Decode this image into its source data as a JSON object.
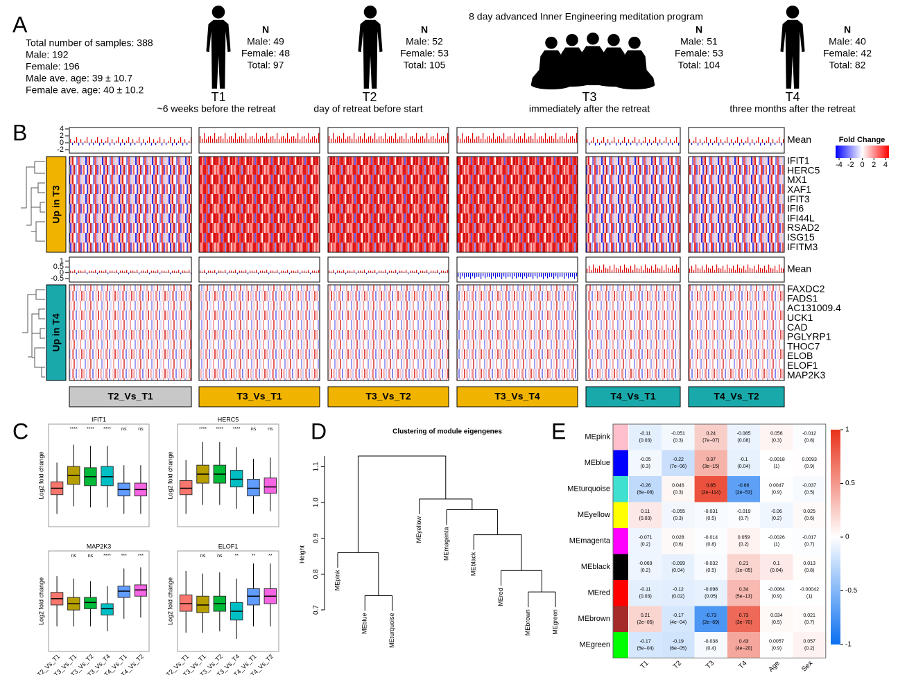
{
  "panel_a": {
    "label": "A",
    "summary": [
      "Total number of samples: 388",
      "Male: 192",
      "Female: 196",
      "Male ave. age: 39 ± 10.7",
      "Female ave. age: 40 ± 10.2"
    ],
    "program_title": "8 day advanced Inner Engineering meditation program",
    "timepoints": [
      {
        "name": "T1",
        "caption": "~6 weeks before the retreat",
        "n": "N",
        "male": "Male: 49",
        "female": "Female: 48",
        "total": "Total: 97"
      },
      {
        "name": "T2",
        "caption": "day of retreat before start",
        "n": "N",
        "male": "Male: 52",
        "female": "Female: 53",
        "total": "Total: 105"
      },
      {
        "name": "T3",
        "caption": "immediately after the retreat",
        "n": "N",
        "male": "Male: 51",
        "female": "Female: 53",
        "total": "Total: 104"
      },
      {
        "name": "T4",
        "caption": "three months after the retreat",
        "n": "N",
        "male": "Male: 40",
        "female": "Female: 42",
        "total": "Total: 82"
      }
    ]
  },
  "panel_b": {
    "label": "B",
    "mean_label": "Mean",
    "groups": [
      {
        "label": "Up in T3",
        "color": "#f0b400",
        "mean_ylim": [
          -3,
          4.4
        ],
        "mean_ticks": [
          4,
          2,
          0,
          -2
        ],
        "genes": [
          "IFIT1",
          "HERC5",
          "MX1",
          "XAF1",
          "IFIT3",
          "IFI6",
          "IFI44L",
          "RSAD2",
          "ISG15",
          "IFITM3"
        ]
      },
      {
        "label": "Up in T4",
        "color": "#1aa9aa",
        "mean_ylim": [
          -0.8,
          1.35
        ],
        "mean_ticks": [
          1,
          0.5,
          0,
          -0.5
        ],
        "genes": [
          "FAXDC2",
          "FADS1",
          "AC131009.4",
          "UCK1",
          "CAD",
          "PGLYRP1",
          "THOC7",
          "ELOB",
          "ELOF1",
          "MAP2K3"
        ]
      }
    ],
    "comparisons": [
      {
        "name": "T2_Vs_T1",
        "color": "#c8c8c8"
      },
      {
        "name": "T3_Vs_T1",
        "color": "#f0b400"
      },
      {
        "name": "T3_Vs_T2",
        "color": "#f0b400"
      },
      {
        "name": "T3_Vs_T4",
        "color": "#f0b400"
      },
      {
        "name": "T4_Vs_T1",
        "color": "#1aa9aa"
      },
      {
        "name": "T4_Vs_T2",
        "color": "#1aa9aa"
      }
    ],
    "legend": {
      "title": "Fold Change",
      "lim": [
        -4.6,
        4.6
      ],
      "ticks": [
        -4,
        -2,
        0,
        2,
        4
      ]
    }
  },
  "panel_c": {
    "label": "C",
    "y_label": "Log2 fold change",
    "ylim": [
      -4,
      4
    ],
    "categories": [
      "T2_Vs_T1",
      "T3_Vs_T1",
      "T3_Vs_T2",
      "T3_Vs_T4",
      "T4_Vs_T1",
      "T4_Vs_T2"
    ],
    "colors": [
      "#f8766d",
      "#b79f00",
      "#00ba38",
      "#00bfc4",
      "#619cff",
      "#f564e3"
    ],
    "plots": [
      {
        "title": "IFIT1",
        "stars": [
          null,
          "****",
          "****",
          "****",
          "ns",
          "ns"
        ],
        "boxes": [
          [
            -3,
            -1.5,
            -1,
            -0.5,
            1
          ],
          [
            -2.4,
            -0.7,
            0,
            0.7,
            2.4
          ],
          [
            -2.5,
            -0.8,
            -0.1,
            0.6,
            2.3
          ],
          [
            -2.5,
            -0.8,
            -0.1,
            0.7,
            2.3
          ],
          [
            -3,
            -1.6,
            -1.1,
            -0.6,
            0.8
          ],
          [
            -3,
            -1.6,
            -1.1,
            -0.6,
            0.8
          ]
        ]
      },
      {
        "title": "HERC5",
        "stars": [
          null,
          "****",
          "****",
          "****",
          "ns",
          "ns"
        ],
        "boxes": [
          [
            -3,
            -1.5,
            -1,
            -0.4,
            1.2
          ],
          [
            -2.3,
            -0.6,
            0.1,
            0.8,
            2.6
          ],
          [
            -2.3,
            -0.6,
            0.1,
            0.8,
            2.6
          ],
          [
            -2.6,
            -0.9,
            -0.3,
            0.4,
            2.2
          ],
          [
            -3,
            -1.6,
            -1,
            -0.3,
            1.3
          ],
          [
            -2.8,
            -1.4,
            -0.9,
            -0.2,
            1.4
          ]
        ]
      },
      {
        "title": "MAP2K3",
        "stars": [
          null,
          "ns",
          "ns",
          "****",
          "***",
          "***"
        ],
        "boxes": [
          [
            -2,
            -0.3,
            0.2,
            0.7,
            2
          ],
          [
            -2,
            -0.7,
            -0.2,
            0.3,
            1.8
          ],
          [
            -2,
            -0.6,
            -0.1,
            0.3,
            1.6
          ],
          [
            -2.4,
            -1.1,
            -0.6,
            -0.2,
            1.2
          ],
          [
            -1.4,
            0.3,
            0.8,
            1.2,
            2.6
          ],
          [
            -1.3,
            0.4,
            0.9,
            1.3,
            2.7
          ]
        ]
      },
      {
        "title": "ELOF1",
        "stars": [
          null,
          "ns",
          "ns",
          "**",
          "**",
          "**"
        ],
        "boxes": [
          [
            -2.5,
            -0.8,
            -0.2,
            0.5,
            2.4
          ],
          [
            -2.5,
            -0.9,
            -0.3,
            0.4,
            2.2
          ],
          [
            -2.4,
            -0.8,
            -0.2,
            0.4,
            2.3
          ],
          [
            -3,
            -1.5,
            -0.8,
            -0.1,
            1.8
          ],
          [
            -2,
            -0.3,
            0.4,
            1,
            3
          ],
          [
            -2,
            -0.2,
            0.4,
            1,
            3
          ]
        ]
      }
    ]
  },
  "panel_d": {
    "label": "D",
    "title": "Clustering of module eigengenes",
    "y_label": "Height",
    "ylim": [
      0.7,
      1.13
    ],
    "yticks": [
      0.7,
      0.8,
      0.9,
      {
        "value": 1,
        "label": "1.0"
      },
      1.1
    ],
    "leaves": [
      "MEpink",
      "MEblue",
      "MEturquoise",
      "MEyellow",
      "MEmagenta",
      "MEblack",
      "MEred",
      "MEbrown",
      "MEgreen"
    ],
    "merge": [
      [
        -2,
        -3
      ],
      [
        -8,
        -9
      ],
      [
        -7,
        2
      ],
      [
        -1,
        1
      ],
      [
        -6,
        3
      ],
      [
        -5,
        5
      ],
      [
        -4,
        6
      ],
      [
        4,
        7
      ]
    ],
    "height": [
      0.74,
      0.75,
      0.81,
      0.86,
      0.91,
      0.98,
      1.01,
      1.13
    ]
  },
  "panel_e": {
    "label": "E",
    "rows": [
      "MEpink",
      "MEblue",
      "MEturquoise",
      "MEyellow",
      "MEmagenta",
      "MEblack",
      "MEred",
      "MEbrown",
      "MEgreen"
    ],
    "row_colors": [
      "#ffc0cb",
      "#0000ff",
      "#40e0d0",
      "#ffff00",
      "#ff00ff",
      "#000000",
      "#ff0000",
      "#a52a2a",
      "#00ff00"
    ],
    "columns": [
      "T1",
      "T2",
      "T3",
      "T4",
      "Age",
      "Sex"
    ],
    "values": [
      [
        -0.11,
        -0.051,
        0.24,
        -0.085,
        0.056,
        -0.012
      ],
      [
        -0.05,
        -0.22,
        0.37,
        -0.1,
        -0.0018,
        0.0093
      ],
      [
        -0.26,
        0.046,
        0.85,
        -0.66,
        0.0047,
        -0.037
      ],
      [
        0.11,
        -0.055,
        -0.031,
        -0.019,
        -0.06,
        0.025
      ],
      [
        -0.071,
        0.028,
        -0.014,
        0.059,
        -0.0026,
        -0.017
      ],
      [
        -0.069,
        -0.099,
        -0.032,
        0.21,
        0.1,
        0.013
      ],
      [
        -0.11,
        -0.12,
        -0.098,
        0.34,
        -0.0064,
        -0.00042
      ],
      [
        0.21,
        -0.17,
        -0.73,
        0.73,
        0.034,
        0.021
      ],
      [
        -0.17,
        -0.19,
        -0.038,
        0.43,
        0.0057,
        0.057
      ]
    ],
    "p_labels": [
      [
        "(0.03)",
        "(0.3)",
        "(7e−07)",
        "(0.08)",
        "(0.3)",
        "(0.8)"
      ],
      [
        "(0.3)",
        "(7e−06)",
        "(3e−15)",
        "(0.04)",
        "(1)",
        "(0.9)"
      ],
      [
        "(6e−08)",
        "(0.3)",
        "(2e−114)",
        "(2e−53)",
        "(0.9)",
        "(0.5)"
      ],
      [
        "(0.03)",
        "(0.3)",
        "(0.5)",
        "(0.7)",
        "(0.2)",
        "(0.6)"
      ],
      [
        "(0.2)",
        "(0.6)",
        "(0.8)",
        "(0.2)",
        "(1)",
        "(0.7)"
      ],
      [
        "(0.2)",
        "(0.04)",
        "(0.5)",
        "(1e−05)",
        "(0.04)",
        "(0.8)"
      ],
      [
        "(0.03)",
        "(0.02)",
        "(0.05)",
        "(5e−13)",
        "(0.9)",
        "(1)"
      ],
      [
        "(2e−05)",
        "(4e−04)",
        "(2e−69)",
        "(3e−70)",
        "(0.5)",
        "(0.7)"
      ],
      [
        "(5e−04)",
        "(6e−05)",
        "(0.4)",
        "(4e−20)",
        "(0.9)",
        "(0.2)"
      ]
    ],
    "colorbar": {
      "lim": [
        -1,
        1
      ],
      "ticks": [
        1,
        0.5,
        0,
        -0.5,
        -1
      ]
    }
  }
}
